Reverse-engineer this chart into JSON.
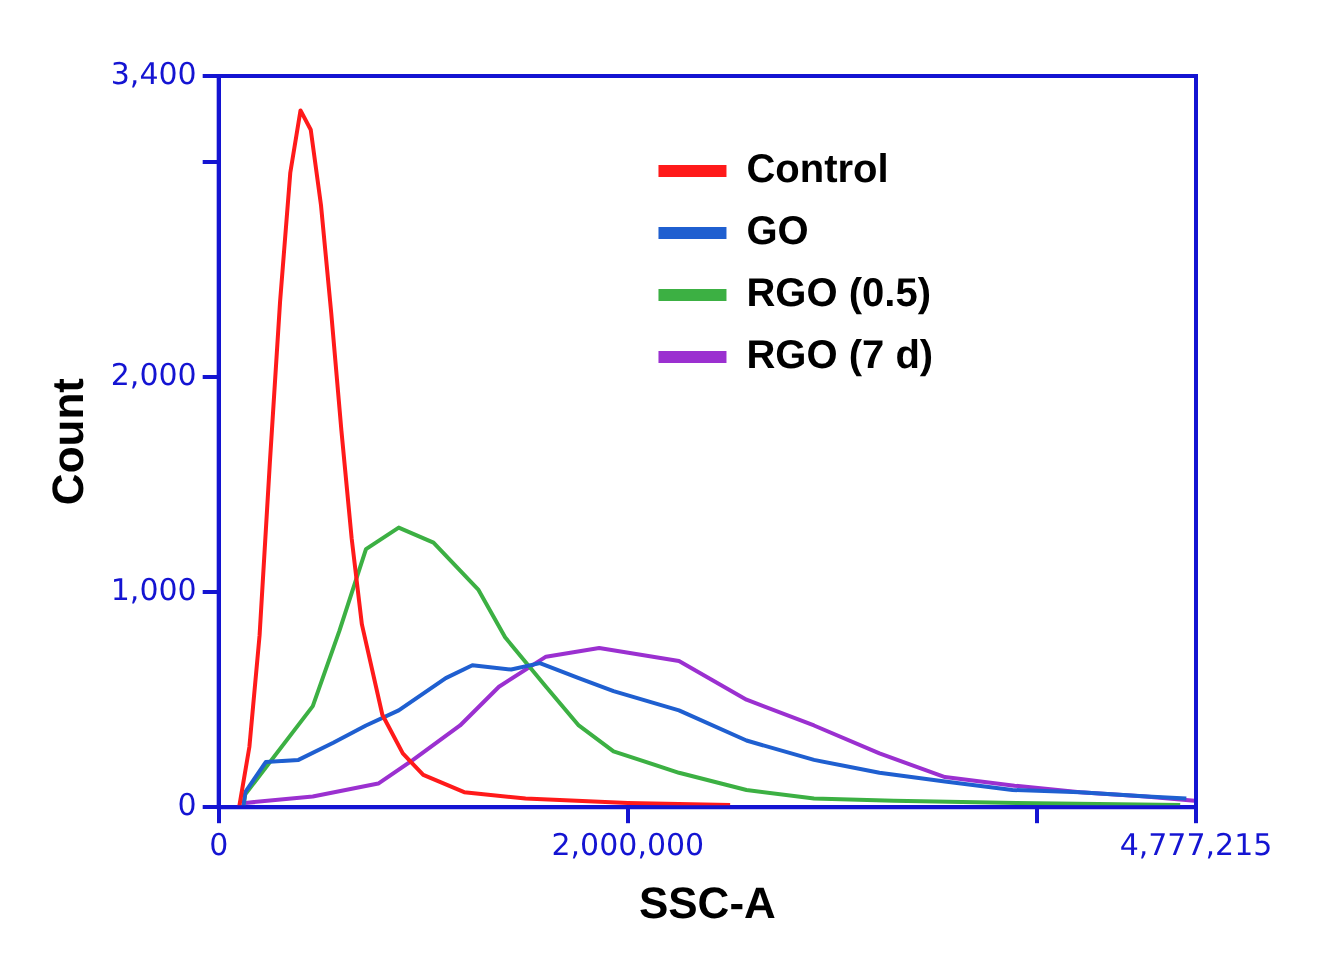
{
  "chart_data": {
    "type": "line",
    "xlabel": "SSC-A",
    "ylabel": "Count",
    "xlim": [
      0,
      4777215
    ],
    "ylim": [
      0,
      3400
    ],
    "xticks": [
      0,
      {
        "value": 2000000,
        "label": "2,000,000"
      },
      {
        "value": 4000000,
        "label": null
      },
      {
        "value": 4777215,
        "label": "4,777,215"
      }
    ],
    "yticks": [
      0,
      {
        "value": 1000,
        "label": "1,000"
      },
      {
        "value": 2000,
        "label": "2,000"
      },
      {
        "value": 3000,
        "label": null
      },
      {
        "value": 3400,
        "label": "3,400"
      }
    ],
    "grid": false,
    "legend": "top right",
    "marker": "none",
    "line_style": "solid",
    "series": [
      {
        "name": "Control",
        "color": "#ff1a1a",
        "x": [
          100000,
          150000,
          200000,
          250000,
          300000,
          350000,
          400000,
          450000,
          500000,
          550000,
          600000,
          650000,
          700000,
          800000,
          900000,
          1000000,
          1200000,
          1500000,
          2000000,
          2500000
        ],
        "values": [
          0,
          280,
          800,
          1600,
          2350,
          2950,
          3240,
          3150,
          2800,
          2300,
          1750,
          1250,
          850,
          430,
          250,
          150,
          70,
          40,
          20,
          10
        ]
      },
      {
        "name": "GO",
        "color": "#1f5fd0",
        "x": [
          120000,
          130000,
          230000,
          390000,
          560000,
          720000,
          880000,
          1110000,
          1240000,
          1430000,
          1570000,
          1760000,
          1930000,
          2250000,
          2580000,
          2910000,
          3230000,
          3550000,
          3880000,
          4210000,
          4540000,
          4730000
        ],
        "values": [
          0,
          70,
          210,
          220,
          300,
          380,
          450,
          600,
          660,
          640,
          670,
          600,
          540,
          450,
          310,
          220,
          160,
          120,
          80,
          70,
          50,
          40
        ]
      },
      {
        "name": "RGO (0.5)",
        "color": "#3cb043",
        "x": [
          120000,
          130000,
          460000,
          590000,
          720000,
          880000,
          1050000,
          1270000,
          1400000,
          1600000,
          1760000,
          1930000,
          2250000,
          2580000,
          2910000,
          3300000,
          3900000,
          4700000
        ],
        "values": [
          0,
          60,
          470,
          820,
          1200,
          1300,
          1230,
          1010,
          790,
          560,
          380,
          260,
          160,
          80,
          40,
          30,
          20,
          10
        ]
      },
      {
        "name": "RGO (7 d)",
        "color": "#9b30d0",
        "x": [
          130000,
          460000,
          780000,
          950000,
          1180000,
          1370000,
          1600000,
          1860000,
          2250000,
          2580000,
          2910000,
          3230000,
          3550000,
          3890000,
          4210000,
          4530000,
          4770000
        ],
        "values": [
          20,
          50,
          110,
          220,
          380,
          560,
          700,
          740,
          680,
          500,
          380,
          250,
          140,
          100,
          70,
          50,
          30
        ]
      }
    ]
  }
}
